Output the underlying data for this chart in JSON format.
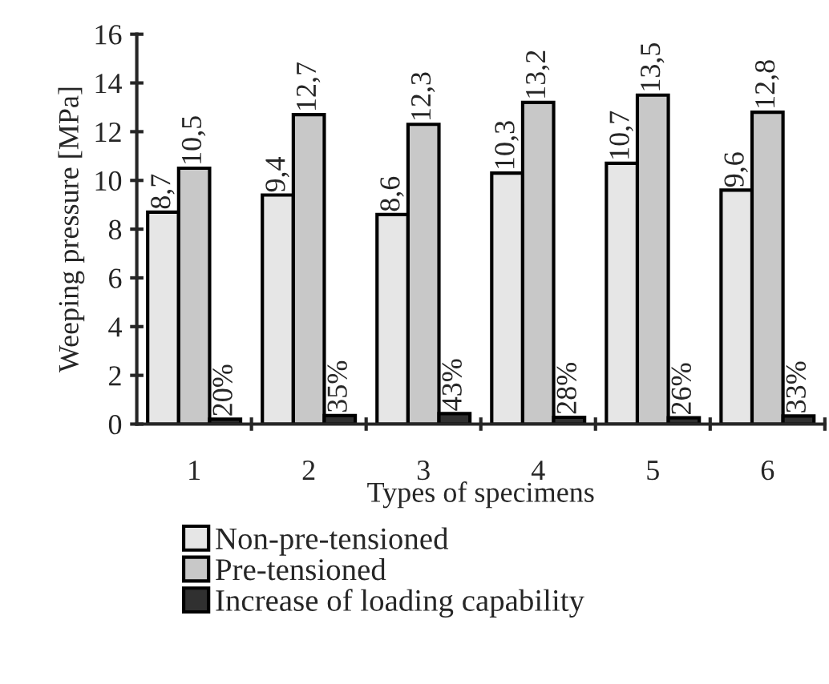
{
  "chart_data": {
    "type": "bar",
    "xlabel": "Types of specimens",
    "ylabel": "Weeping pressure [MPa]",
    "categories": [
      "1",
      "2",
      "3",
      "4",
      "5",
      "6"
    ],
    "series": [
      {
        "name": "Non-pre-tensioned",
        "color": "#e6e6e6",
        "values": [
          8.7,
          9.4,
          8.6,
          10.3,
          10.7,
          9.6
        ],
        "value_labels": [
          "8,7",
          "9,4",
          "8,6",
          "10,3",
          "10,7",
          "9,6"
        ]
      },
      {
        "name": "Pre-tensioned",
        "color": "#c8c8c8",
        "values": [
          10.5,
          12.7,
          12.3,
          13.2,
          13.5,
          12.8
        ],
        "value_labels": [
          "10,5",
          "12,7",
          "12,3",
          "13,2",
          "13,5",
          "12,8"
        ]
      },
      {
        "name": "Increase of loading capability",
        "color": "#303030",
        "values": [
          0.2,
          0.35,
          0.43,
          0.28,
          0.26,
          0.33
        ],
        "value_labels": [
          "20%",
          "35%",
          "43%",
          "28%",
          "26%",
          "33%"
        ]
      }
    ],
    "ylim": [
      0,
      16
    ],
    "yticks": [
      0,
      2,
      4,
      6,
      8,
      10,
      12,
      14,
      16
    ],
    "grid": false,
    "legend": "bottom"
  }
}
